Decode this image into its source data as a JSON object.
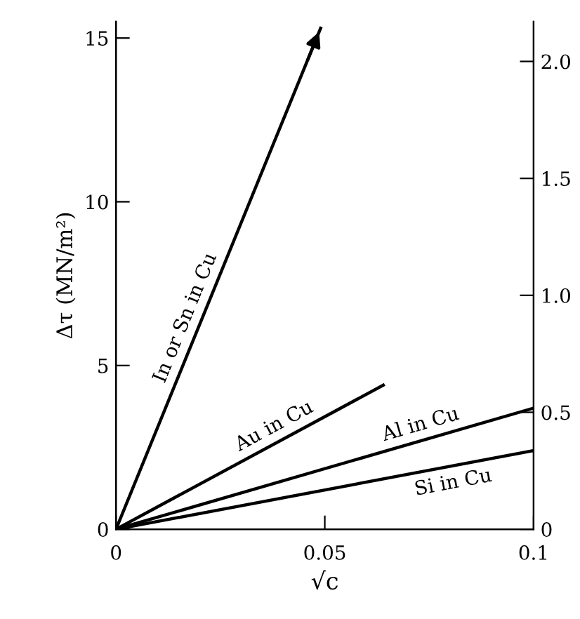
{
  "chart_data": {
    "type": "line",
    "xlabel": "√c",
    "ylabel": "Δτ (MN/m²)",
    "xlim": [
      0,
      0.1
    ],
    "xticks": [
      0,
      0.05,
      0.1
    ],
    "ylim": [
      0,
      15.5
    ],
    "yticks": [
      0,
      5,
      10,
      15
    ],
    "y2lim": [
      0,
      2.17
    ],
    "y2ticks": [
      0,
      0.5,
      {
        "value": 1,
        "label": "1.0"
      },
      1.5,
      {
        "value": 2,
        "label": "2.0"
      }
    ],
    "series": [
      {
        "name": "In or Sn in Cu",
        "color": "#000000",
        "x": [
          0,
          0.049
        ],
        "values": [
          0,
          15.3
        ]
      },
      {
        "name": "Au in Cu",
        "color": "#000000",
        "x": [
          0,
          0.064
        ],
        "values": [
          0,
          4.4
        ]
      },
      {
        "name": "Al in Cu",
        "color": "#000000",
        "x": [
          0,
          0.1
        ],
        "values": [
          0,
          3.7
        ]
      },
      {
        "name": "Si in Cu",
        "color": "#000000",
        "x": [
          0,
          0.1
        ],
        "values": [
          0,
          2.4
        ]
      }
    ],
    "grid": false,
    "legend": false,
    "marker": "none",
    "line_style": "solid"
  }
}
